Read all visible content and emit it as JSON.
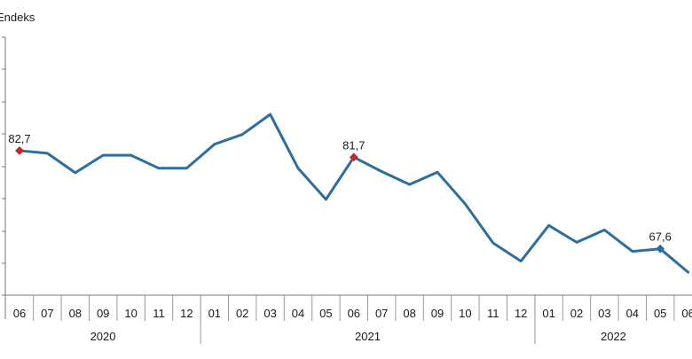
{
  "chart_data": {
    "type": "line",
    "ylabel": "Endeks",
    "x": [
      "06",
      "07",
      "08",
      "09",
      "10",
      "11",
      "12",
      "01",
      "02",
      "03",
      "04",
      "05",
      "06",
      "07",
      "08",
      "09",
      "10",
      "11",
      "12",
      "01",
      "02",
      "03",
      "04",
      "05",
      "06"
    ],
    "years": [
      {
        "label": "2020"
      },
      {
        "label": "2021"
      },
      {
        "label": "2022"
      }
    ],
    "series": [
      {
        "color": "#2e6e9e",
        "values": [
          82.7,
          82.3,
          79.3,
          82.0,
          82.0,
          80.0,
          80.0,
          83.7,
          85.2,
          88.3,
          80.0,
          75.2,
          81.7,
          79.5,
          77.5,
          79.4,
          74.5,
          68.5,
          65.7,
          71.2,
          68.6,
          70.5,
          67.2,
          67.6,
          64.0
        ]
      }
    ],
    "annotations": [
      {
        "index": 0,
        "text": "82,7",
        "marker": "diamond",
        "color": "#c0282b"
      },
      {
        "index": 12,
        "text": "81,7",
        "marker": "diamond",
        "color": "#c0282b"
      },
      {
        "index": 23,
        "text": "67,6",
        "marker": "diamond",
        "color": "#2e6e9e"
      }
    ],
    "ylim": [
      50,
      100
    ],
    "grid": false,
    "legend": "none"
  }
}
